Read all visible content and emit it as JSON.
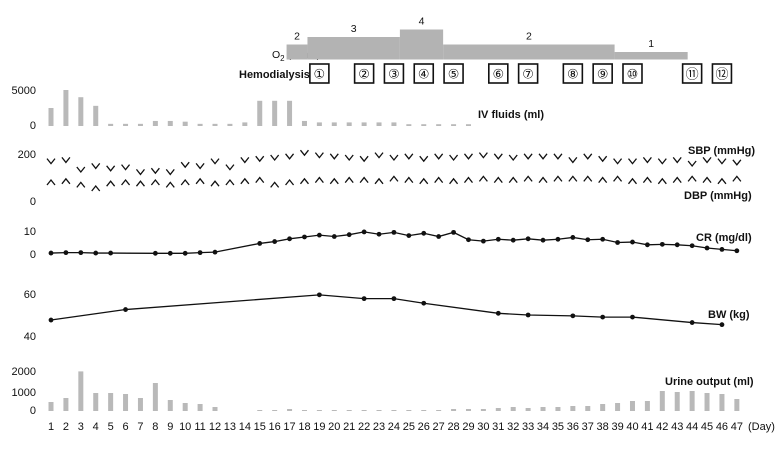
{
  "colors": {
    "bar": "#b9b9b9",
    "line": "#111111",
    "o2": "#b3b3b3",
    "box": "#111111"
  },
  "chart_data": [
    {
      "type": "area",
      "label": "O2 (L/min)",
      "x": [
        1,
        2,
        3,
        4,
        5,
        6,
        7,
        8,
        9,
        10,
        11,
        12,
        13,
        14,
        15,
        16,
        17,
        18,
        19,
        20,
        21,
        22,
        23,
        24,
        25,
        26,
        27,
        28,
        29,
        30,
        31,
        32,
        33,
        34,
        35,
        36,
        37,
        38,
        39,
        40,
        41,
        42,
        43,
        44,
        45,
        46,
        47
      ],
      "steps": [
        {
          "from_day": 16.8,
          "to_day": 18.2,
          "value": 2
        },
        {
          "from_day": 18.2,
          "to_day": 24.4,
          "value": 3
        },
        {
          "from_day": 24.4,
          "to_day": 27.3,
          "value": 4
        },
        {
          "from_day": 27.3,
          "to_day": 38.8,
          "value": 2
        },
        {
          "from_day": 38.8,
          "to_day": 43.7,
          "value": 1
        }
      ],
      "step_labels": [
        "2",
        "3",
        "4",
        "2",
        "1"
      ]
    },
    {
      "type": "table",
      "label": "Hemodialysis",
      "sessions": [
        "①",
        "②",
        "③",
        "④",
        "⑤",
        "⑥",
        "⑦",
        "⑧",
        "⑨",
        "⑩",
        "⑪",
        "⑫"
      ],
      "days": [
        19,
        22,
        24,
        26,
        28,
        31,
        33,
        36,
        38,
        40,
        44,
        46
      ]
    },
    {
      "type": "bar",
      "label": "IV fluids (ml)",
      "ylim": [
        0,
        5000
      ],
      "yticks": [
        "5000",
        "0"
      ],
      "x": [
        1,
        2,
        3,
        4,
        5,
        6,
        7,
        8,
        9,
        10,
        11,
        12,
        13,
        14,
        15,
        16,
        17,
        18,
        19,
        20,
        21,
        22,
        23,
        24,
        25,
        26,
        27,
        28,
        29,
        30,
        31,
        32,
        33,
        34,
        35,
        36,
        37,
        38,
        39,
        40,
        41,
        42,
        43,
        44,
        45,
        46,
        47
      ],
      "values": [
        2500,
        5000,
        4000,
        2800,
        300,
        300,
        300,
        700,
        700,
        600,
        300,
        300,
        300,
        500,
        3500,
        3500,
        3500,
        700,
        500,
        500,
        500,
        500,
        500,
        500,
        250,
        250,
        250,
        250,
        250,
        0,
        0,
        0,
        0,
        0,
        0,
        0,
        0,
        0,
        0,
        0,
        0,
        0,
        0,
        0,
        0,
        0,
        0
      ]
    },
    {
      "type": "scatter",
      "label_sbp": "SBP (mmHg)",
      "label_dbp": "DBP (mmHg)",
      "ylim": [
        0,
        200
      ],
      "yticks": [
        "200",
        "0"
      ],
      "x": [
        1,
        2,
        3,
        4,
        5,
        6,
        7,
        8,
        9,
        10,
        11,
        12,
        13,
        14,
        15,
        16,
        17,
        18,
        19,
        20,
        21,
        22,
        23,
        24,
        25,
        26,
        27,
        28,
        29,
        30,
        31,
        32,
        33,
        34,
        35,
        36,
        37,
        38,
        39,
        40,
        41,
        42,
        43,
        44,
        45,
        46,
        47
      ],
      "sbp": [
        160,
        165,
        125,
        140,
        130,
        135,
        115,
        120,
        115,
        145,
        140,
        160,
        135,
        165,
        170,
        175,
        180,
        195,
        185,
        180,
        175,
        170,
        185,
        175,
        180,
        170,
        180,
        175,
        180,
        185,
        180,
        175,
        180,
        180,
        180,
        165,
        180,
        170,
        160,
        160,
        165,
        160,
        165,
        150,
        165,
        160,
        155
      ],
      "dbp": [
        75,
        80,
        65,
        50,
        70,
        75,
        70,
        75,
        65,
        75,
        80,
        70,
        75,
        80,
        85,
        65,
        75,
        80,
        85,
        80,
        85,
        85,
        80,
        90,
        85,
        80,
        85,
        80,
        85,
        90,
        85,
        85,
        90,
        85,
        90,
        90,
        90,
        85,
        90,
        80,
        85,
        80,
        85,
        90,
        85,
        80,
        90
      ]
    },
    {
      "type": "line",
      "label": "CR (mg/dl)",
      "ylim": [
        0,
        10
      ],
      "yticks": [
        "10",
        "0"
      ],
      "x": [
        1,
        2,
        3,
        4,
        5,
        8,
        9,
        10,
        11,
        12,
        15,
        16,
        17,
        18,
        19,
        20,
        21,
        22,
        23,
        24,
        25,
        26,
        27,
        28,
        29,
        30,
        31,
        32,
        33,
        34,
        35,
        36,
        37,
        38,
        39,
        40,
        41,
        42,
        43,
        44,
        45,
        46,
        47
      ],
      "values": [
        0.4,
        0.6,
        0.6,
        0.4,
        0.4,
        0.3,
        0.3,
        0.3,
        0.6,
        0.8,
        4.6,
        5.4,
        6.6,
        7.4,
        8.2,
        7.6,
        8.4,
        9.6,
        8.6,
        9.4,
        8.0,
        9.0,
        7.6,
        9.4,
        6.2,
        5.6,
        6.4,
        6.0,
        6.6,
        6.0,
        6.4,
        7.2,
        6.2,
        6.4,
        5.0,
        5.2,
        4.0,
        4.2,
        4.0,
        3.6,
        2.6,
        2.0,
        1.4
      ]
    },
    {
      "type": "line",
      "label": "BW (kg)",
      "ylim": [
        40,
        60
      ],
      "yticks": [
        "60",
        "40"
      ],
      "x": [
        1,
        6,
        19,
        22,
        24,
        26,
        31,
        33,
        36,
        38,
        40,
        44,
        46
      ],
      "values": [
        47.6,
        52.6,
        59.6,
        57.8,
        57.8,
        55.6,
        50.8,
        50.0,
        49.6,
        49.0,
        49.0,
        46.4,
        45.4
      ]
    },
    {
      "type": "bar",
      "label": "Urine output (ml)",
      "ylim": [
        0,
        2000
      ],
      "yticks": [
        "2000",
        "1000",
        "0"
      ],
      "x": [
        1,
        2,
        3,
        4,
        5,
        6,
        7,
        8,
        9,
        10,
        11,
        12,
        13,
        14,
        15,
        16,
        17,
        18,
        19,
        20,
        21,
        22,
        23,
        24,
        25,
        26,
        27,
        28,
        29,
        30,
        31,
        32,
        33,
        34,
        35,
        36,
        37,
        38,
        39,
        40,
        41,
        42,
        43,
        44,
        45,
        46,
        47
      ],
      "values": [
        450,
        650,
        1980,
        900,
        900,
        850,
        650,
        1400,
        550,
        400,
        350,
        200,
        0,
        0,
        50,
        50,
        100,
        50,
        50,
        50,
        50,
        50,
        50,
        50,
        50,
        50,
        50,
        100,
        100,
        100,
        150,
        200,
        150,
        200,
        200,
        250,
        250,
        350,
        400,
        500,
        500,
        1000,
        950,
        1000,
        900,
        850,
        600
      ]
    }
  ],
  "x_axis": {
    "ticks": [
      "1",
      "2",
      "3",
      "4",
      "5",
      "6",
      "7",
      "8",
      "9",
      "10",
      "11",
      "12",
      "13",
      "14",
      "15",
      "16",
      "17",
      "18",
      "19",
      "20",
      "21",
      "22",
      "23",
      "24",
      "25",
      "26",
      "27",
      "28",
      "29",
      "30",
      "31",
      "32",
      "33",
      "34",
      "35",
      "36",
      "37",
      "38",
      "39",
      "40",
      "41",
      "42",
      "43",
      "44",
      "45",
      "46",
      "47"
    ],
    "unit": "(Day)"
  }
}
